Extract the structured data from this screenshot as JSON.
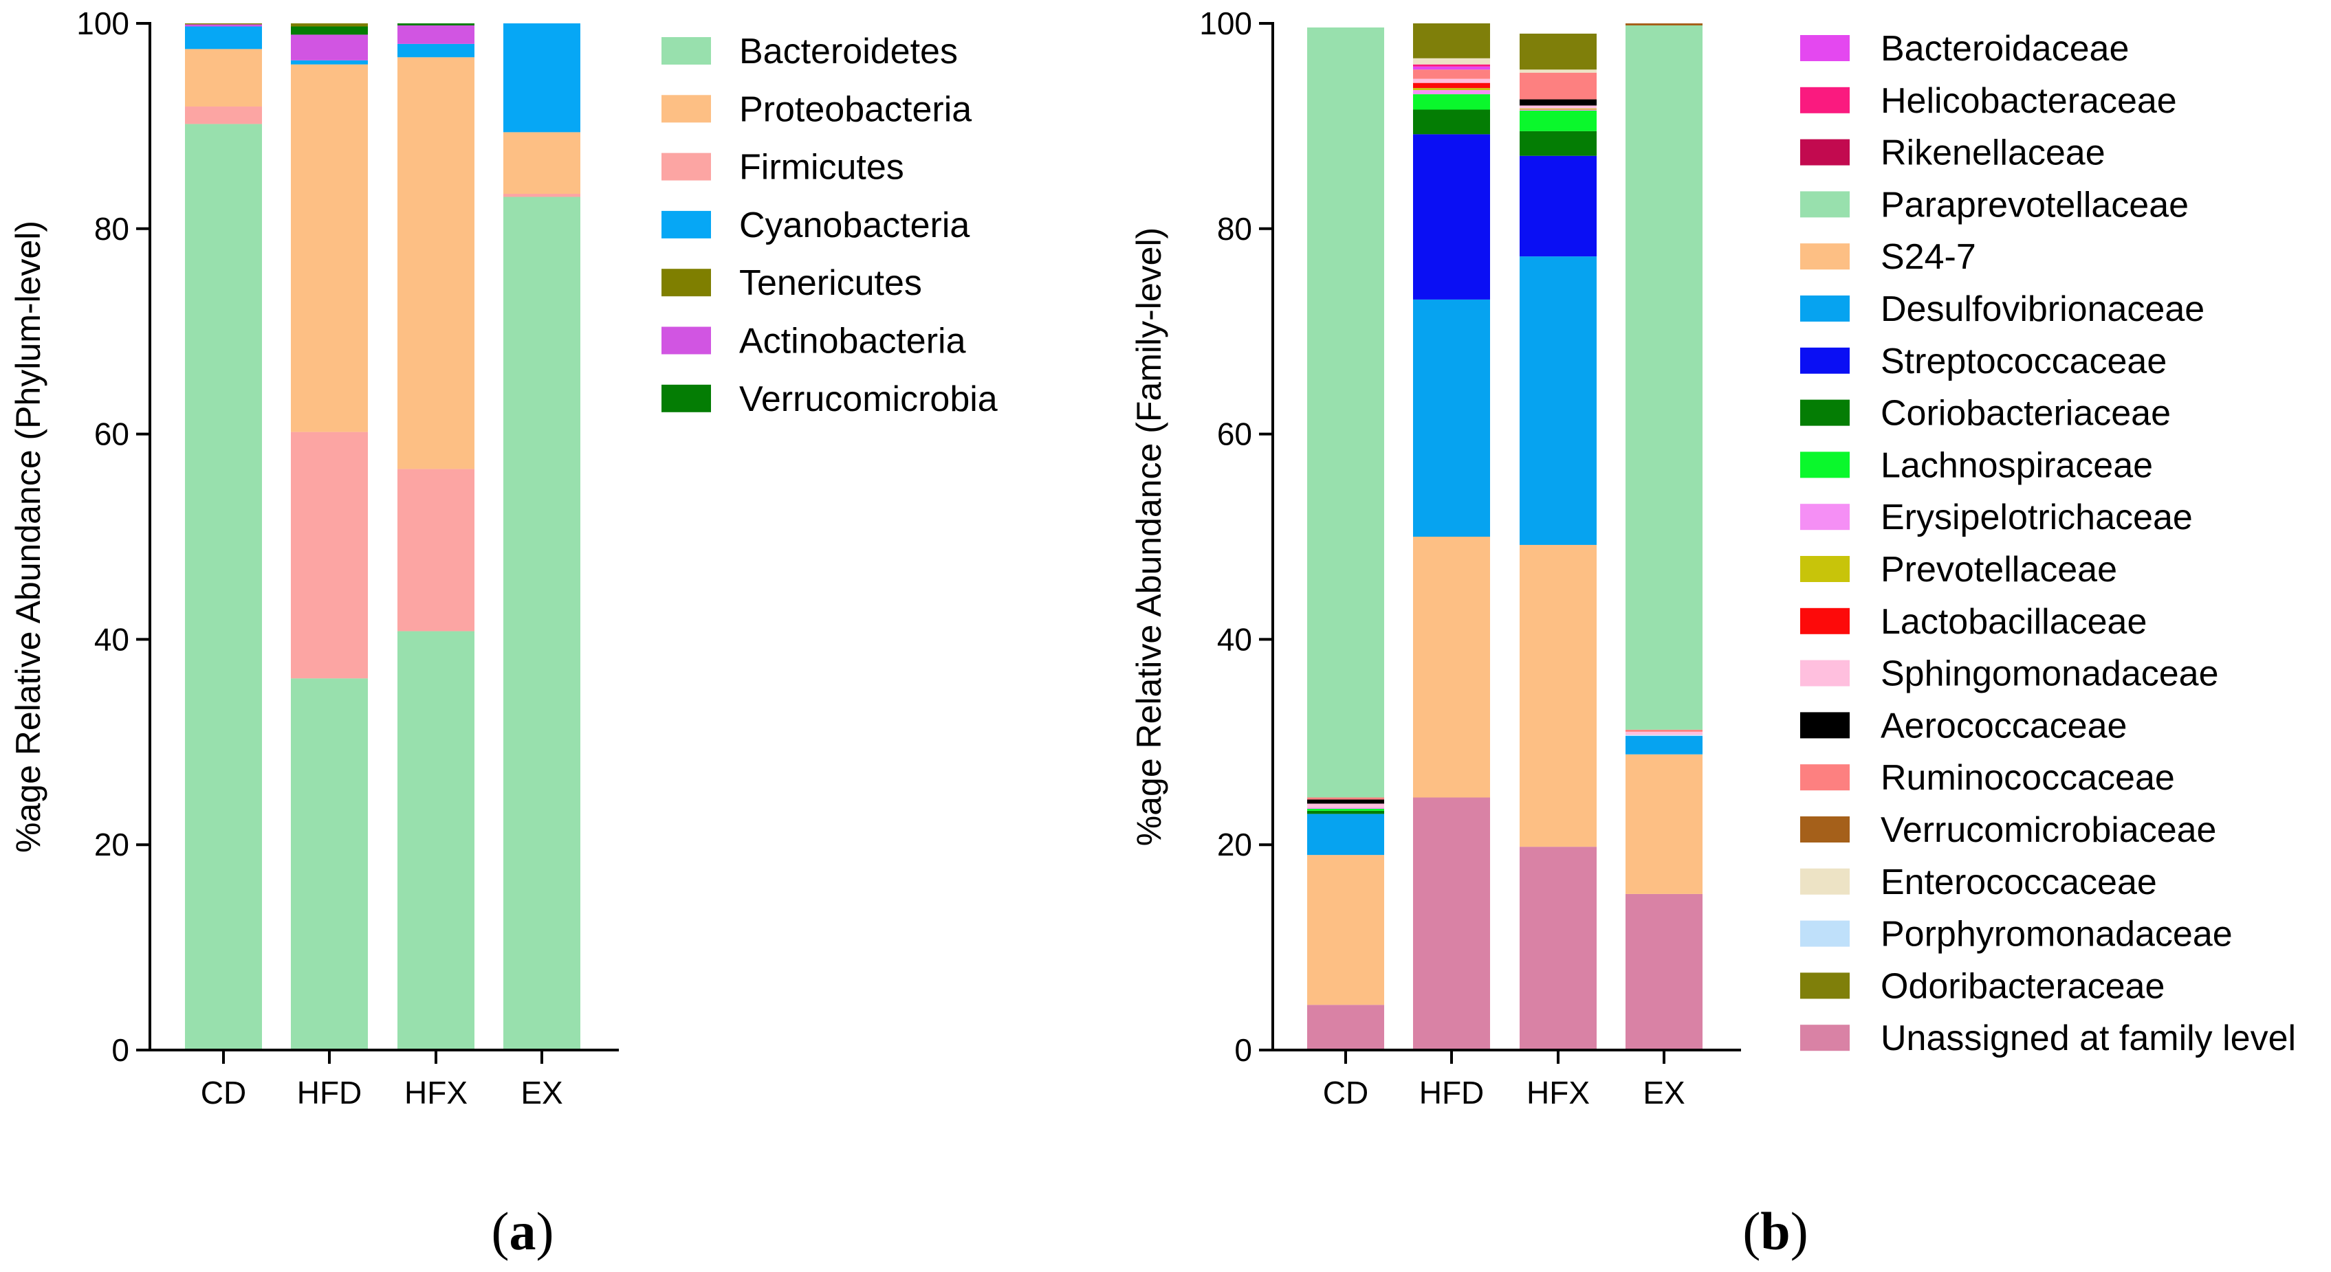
{
  "colors": {
    "Bacteroidetes": "#98e0ad",
    "Proteobacteria": "#fdbf84",
    "Firmicutes": "#fca5a3",
    "Cyanobacteria": "#06a7f5",
    "Tenericutes": "#7f7f00",
    "Actinobacteria": "#d155e2",
    "Verrucomicrobia": "#047d04",
    "Bacteroidaceae": "#e448f0",
    "Helicobacteraceae": "#fa1a7f",
    "Rikenellaceae": "#c20a4f",
    "Paraprevotellaceae": "#98e0ad",
    "S24-7": "#fdbf84",
    "Desulfovibrionaceae": "#06a3f0",
    "Streptococcaceae": "#0a0ff4",
    "Coriobacteriaceae": "#047d04",
    "Lachnospiraceae": "#0af82c",
    "Erysipelotrichaceae": "#f58ff5",
    "Prevotellaceae": "#c8c40a",
    "Lactobacillaceae": "#fd0a0a",
    "Sphingomonadaceae": "#ffbfde",
    "Aerococcaceae": "#000000",
    "Ruminococcaceae": "#fd8080",
    "Verrucomicrobiaceae": "#a5601a",
    "Enterococcaceae": "#ede3c5",
    "Porphyromonadaceae": "#bfe0fa",
    "Odoribacteraceae": "#7f7f0a",
    "Unassigned at family level": "#d982a5"
  },
  "chart_data": [
    {
      "type": "bar",
      "stacked": true,
      "panel_label": "a",
      "title": "",
      "xlabel": "",
      "ylabel": "%age Relative Abundance (Phylum-level)",
      "ylim": [
        0,
        100
      ],
      "yticks": [
        "0",
        "20",
        "40",
        "60",
        "80",
        "100"
      ],
      "categories": [
        "CD",
        "HFD",
        "HFX",
        "EX"
      ],
      "legend_position": "right",
      "series": [
        {
          "name": "Bacteroidetes",
          "values": [
            90.2,
            36.2,
            40.8,
            83.1
          ]
        },
        {
          "name": "Firmicutes",
          "values": [
            1.7,
            24.0,
            15.8,
            0.3
          ]
        },
        {
          "name": "Proteobacteria",
          "values": [
            5.6,
            35.8,
            40.1,
            6.0
          ]
        },
        {
          "name": "Cyanobacteria",
          "values": [
            2.2,
            0.4,
            1.3,
            10.6
          ]
        },
        {
          "name": "Actinobacteria",
          "values": [
            0.2,
            2.5,
            1.8,
            0.0
          ]
        },
        {
          "name": "Verrucomicrobia",
          "values": [
            0.0,
            0.8,
            0.2,
            0.0
          ]
        },
        {
          "name": "Tenericutes",
          "values": [
            0.1,
            0.3,
            0.0,
            0.0
          ]
        }
      ],
      "legend": [
        "Bacteroidetes",
        "Proteobacteria",
        "Firmicutes",
        "Cyanobacteria",
        "Tenericutes",
        "Actinobacteria",
        "Verrucomicrobia"
      ]
    },
    {
      "type": "bar",
      "stacked": true,
      "panel_label": "b",
      "title": "",
      "xlabel": "",
      "ylabel": "%age Relative Abundance (Family-level)",
      "ylim": [
        0,
        100
      ],
      "yticks": [
        "0",
        "20",
        "40",
        "60",
        "80",
        "100"
      ],
      "categories": [
        "CD",
        "HFD",
        "HFX",
        "EX"
      ],
      "legend_position": "right",
      "series": [
        {
          "name": "Unassigned at family level",
          "values": [
            4.4,
            24.6,
            19.8,
            15.2
          ]
        },
        {
          "name": "S24-7",
          "values": [
            14.6,
            25.4,
            29.4,
            13.6
          ]
        },
        {
          "name": "Desulfovibrionaceae",
          "values": [
            4.0,
            23.1,
            28.1,
            1.8
          ]
        },
        {
          "name": "Porphyromonadaceae",
          "values": [
            0.0,
            0.0,
            0.0,
            0.1
          ]
        },
        {
          "name": "Streptococcaceae",
          "values": [
            0.0,
            16.1,
            9.8,
            0.0
          ]
        },
        {
          "name": "Coriobacteriaceae",
          "values": [
            0.3,
            2.4,
            2.4,
            0.0
          ]
        },
        {
          "name": "Lachnospiraceae",
          "values": [
            0.2,
            1.5,
            2.0,
            0.0
          ]
        },
        {
          "name": "Erysipelotrichaceae",
          "values": [
            0.1,
            0.4,
            0.1,
            0.0
          ]
        },
        {
          "name": "Prevotellaceae",
          "values": [
            0.0,
            0.2,
            0.1,
            0.0
          ]
        },
        {
          "name": "Lactobacillaceae",
          "values": [
            0.0,
            0.5,
            0.0,
            0.0
          ]
        },
        {
          "name": "Sphingomonadaceae",
          "values": [
            0.4,
            0.4,
            0.3,
            0.3
          ]
        },
        {
          "name": "Aerococcaceae",
          "values": [
            0.4,
            0.0,
            0.6,
            0.0
          ]
        },
        {
          "name": "Ruminococcaceae",
          "values": [
            0.2,
            0.9,
            2.6,
            0.2
          ]
        },
        {
          "name": "Bacteroidaceae",
          "values": [
            0.0,
            0.3,
            0.0,
            0.0
          ]
        },
        {
          "name": "Helicobacteraceae",
          "values": [
            0.0,
            0.2,
            0.0,
            0.0
          ]
        },
        {
          "name": "Rikenellaceae",
          "values": [
            0.0,
            0.0,
            0.0,
            0.0
          ]
        },
        {
          "name": "Enterococcaceae",
          "values": [
            0.0,
            0.6,
            0.3,
            0.0
          ]
        },
        {
          "name": "Paraprevotellaceae",
          "values": [
            75.0,
            0.0,
            0.0,
            68.6
          ]
        },
        {
          "name": "Verrucomicrobiaceae",
          "values": [
            0.0,
            0.0,
            0.0,
            0.2
          ]
        },
        {
          "name": "Odoribacteraceae",
          "values": [
            0.0,
            3.4,
            3.5,
            0.0
          ]
        }
      ],
      "legend": [
        "Bacteroidaceae",
        "Helicobacteraceae",
        "Rikenellaceae",
        "Paraprevotellaceae",
        "S24-7",
        "Desulfovibrionaceae",
        "Streptococcaceae",
        "Coriobacteriaceae",
        "Lachnospiraceae",
        "Erysipelotrichaceae",
        "Prevotellaceae",
        "Lactobacillaceae",
        "Sphingomonadaceae",
        "Aerococcaceae",
        "Ruminococcaceae",
        "Verrucomicrobiaceae",
        "Enterococcaceae",
        "Porphyromonadaceae",
        "Odoribacteraceae",
        "Unassigned at family level"
      ]
    }
  ]
}
